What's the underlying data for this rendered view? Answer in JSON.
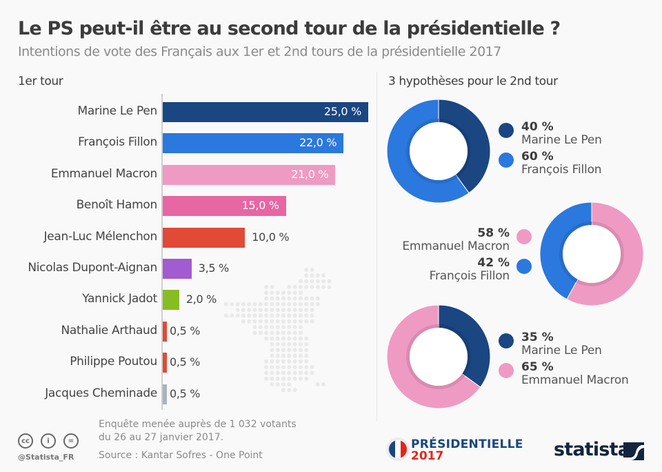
{
  "header": {
    "title": "Le PS peut-il être au second tour de la présidentielle ?",
    "subtitle": "Intentions de vote des Français aux 1er et 2nd tours de la présidentielle 2017"
  },
  "sections": {
    "first_round": "1er tour",
    "second_round": "3 hypothèses pour le 2nd tour"
  },
  "chart_data": [
    {
      "type": "bar",
      "orientation": "horizontal",
      "title": "1er tour",
      "categories": [
        "Marine Le Pen",
        "François Fillon",
        "Emmanuel Macron",
        "Benoît Hamon",
        "Jean-Luc Mélenchon",
        "Nicolas Dupont-Aignan",
        "Yannick Jadot",
        "Nathalie Arthaud",
        "Philippe Poutou",
        "Jacques Cheminade"
      ],
      "values": [
        25.0,
        22.0,
        21.0,
        15.0,
        10.0,
        3.5,
        2.0,
        0.5,
        0.5,
        0.5
      ],
      "value_labels": [
        "25,0 %",
        "22,0 %",
        "21,0 %",
        "15,0 %",
        "10,0 %",
        "3,5 %",
        "2,0 %",
        "0,5 %",
        "0,5 %",
        "0,5 %"
      ],
      "colors": [
        "#1a4682",
        "#2b78de",
        "#ef9ac2",
        "#e766a4",
        "#e04a36",
        "#a25bd0",
        "#86bd23",
        "#e04a36",
        "#e04a36",
        "#a9b3bd"
      ],
      "unit": "%",
      "xlim": [
        0,
        25
      ],
      "grid": false
    },
    {
      "type": "pie",
      "variant": "donut",
      "title": "Hypothèse 1",
      "slices": [
        {
          "label": "Marine Le Pen",
          "value": 40,
          "value_label": "40 %",
          "color": "#1a4682"
        },
        {
          "label": "François Fillon",
          "value": 60,
          "value_label": "60 %",
          "color": "#2b78de"
        }
      ],
      "legend": "right"
    },
    {
      "type": "pie",
      "variant": "donut",
      "title": "Hypothèse 2",
      "slices": [
        {
          "label": "Emmanuel Macron",
          "value": 58,
          "value_label": "58 %",
          "color": "#ef9ac2"
        },
        {
          "label": "François Fillon",
          "value": 42,
          "value_label": "42 %",
          "color": "#2b78de"
        }
      ],
      "legend": "left"
    },
    {
      "type": "pie",
      "variant": "donut",
      "title": "Hypothèse 3",
      "slices": [
        {
          "label": "Marine Le Pen",
          "value": 35,
          "value_label": "35 %",
          "color": "#1a4682"
        },
        {
          "label": "Emmanuel Macron",
          "value": 65,
          "value_label": "65 %",
          "color": "#ef9ac2"
        }
      ],
      "legend": "right"
    }
  ],
  "footer": {
    "note_line1": "Enquête menée auprès de 1 032 votants",
    "note_line2": "du 26 au 27 janvier 2017.",
    "source": "Source : Kantar Sofres - One Point",
    "handle": "@Statista_FR",
    "license_icons": [
      "cc-icon",
      "by-icon",
      "nd-icon"
    ],
    "license_glyphs": [
      "cc",
      "i",
      "="
    ],
    "badge_word": "PRÉSIDENTIELLE",
    "badge_year": "2017",
    "brand": "statista"
  }
}
